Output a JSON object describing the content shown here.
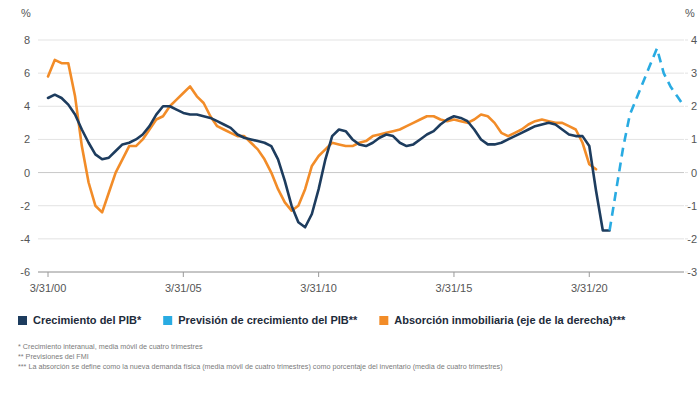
{
  "chart_data": {
    "type": "line",
    "y_label": "%",
    "y2_label": "%",
    "categories": [
      "3/31/00",
      null,
      null,
      null,
      null,
      null,
      null,
      null,
      null,
      null,
      null,
      null,
      null,
      null,
      null,
      null,
      null,
      null,
      null,
      null,
      "3/31/05",
      null,
      null,
      null,
      null,
      null,
      null,
      null,
      null,
      null,
      null,
      null,
      null,
      null,
      null,
      null,
      null,
      null,
      null,
      null,
      "3/31/10",
      null,
      null,
      null,
      null,
      null,
      null,
      null,
      null,
      null,
      null,
      null,
      null,
      null,
      null,
      null,
      null,
      null,
      null,
      null,
      "3/31/15",
      null,
      null,
      null,
      null,
      null,
      null,
      null,
      null,
      null,
      null,
      null,
      null,
      null,
      null,
      null,
      null,
      null,
      null,
      null,
      "3/31/20",
      null,
      null,
      null,
      null,
      null,
      null,
      null,
      null,
      null,
      null,
      null,
      null,
      null,
      null
    ],
    "ylim": [
      -6,
      8
    ],
    "yticks": [
      -6,
      -4,
      -2,
      0,
      2,
      4,
      6,
      8
    ],
    "y2lim": [
      -3,
      4
    ],
    "y2ticks": [
      -3,
      -2,
      -1,
      0,
      1,
      2,
      3,
      4
    ],
    "grid": true,
    "legend": "bottom",
    "series": [
      {
        "name": "Crecimiento del PIB*",
        "color": "#1d3c5e",
        "line_style": "solid",
        "values": [
          4.5,
          4.7,
          4.5,
          4.1,
          3.5,
          2.6,
          1.8,
          1.1,
          0.8,
          0.9,
          1.3,
          1.7,
          1.8,
          2.0,
          2.3,
          2.8,
          3.5,
          4.0,
          4.0,
          3.8,
          3.6,
          3.5,
          3.5,
          3.4,
          3.3,
          3.1,
          2.9,
          2.7,
          2.3,
          2.1,
          2.0,
          1.9,
          1.8,
          1.6,
          0.8,
          -0.5,
          -2.0,
          -3.0,
          -3.3,
          -2.5,
          -1.0,
          0.8,
          2.2,
          2.6,
          2.5,
          2.0,
          1.7,
          1.6,
          1.8,
          2.1,
          2.3,
          2.2,
          1.8,
          1.6,
          1.7,
          2.0,
          2.3,
          2.5,
          2.9,
          3.2,
          3.4,
          3.3,
          3.1,
          2.6,
          2.0,
          1.7,
          1.7,
          1.8,
          2.0,
          2.2,
          2.4,
          2.6,
          2.8,
          2.9,
          3.0,
          2.9,
          2.6,
          2.3,
          2.2,
          2.2,
          1.6,
          -1.1,
          -3.5,
          -3.5,
          null,
          null,
          null,
          null,
          null,
          null,
          null,
          null,
          null,
          null,
          null
        ]
      },
      {
        "name": "Previsión de crecimiento del PIB**",
        "color": "#29abe2",
        "line_style": "dashed",
        "values": [
          null,
          null,
          null,
          null,
          null,
          null,
          null,
          null,
          null,
          null,
          null,
          null,
          null,
          null,
          null,
          null,
          null,
          null,
          null,
          null,
          null,
          null,
          null,
          null,
          null,
          null,
          null,
          null,
          null,
          null,
          null,
          null,
          null,
          null,
          null,
          null,
          null,
          null,
          null,
          null,
          null,
          null,
          null,
          null,
          null,
          null,
          null,
          null,
          null,
          null,
          null,
          null,
          null,
          null,
          null,
          null,
          null,
          null,
          null,
          null,
          null,
          null,
          null,
          null,
          null,
          null,
          null,
          null,
          null,
          null,
          null,
          null,
          null,
          null,
          null,
          null,
          null,
          null,
          null,
          null,
          null,
          null,
          null,
          -3.5,
          -1.0,
          1.5,
          3.5,
          4.5,
          5.5,
          6.5,
          7.5,
          6.0,
          5.2,
          4.6,
          4.0
        ]
      },
      {
        "name": "Absorción inmobiliaria (eje de la derecha)***",
        "color": "#f28c28",
        "line_style": "solid",
        "axis": "y2",
        "values": [
          2.9,
          3.4,
          3.3,
          3.3,
          2.3,
          0.8,
          -0.3,
          -1.0,
          -1.2,
          -0.6,
          0.0,
          0.4,
          0.8,
          0.8,
          1.0,
          1.3,
          1.6,
          1.7,
          2.0,
          2.2,
          2.4,
          2.6,
          2.3,
          2.1,
          1.7,
          1.4,
          1.3,
          1.2,
          1.1,
          1.1,
          0.9,
          0.7,
          0.4,
          0.0,
          -0.5,
          -0.9,
          -1.15,
          -1.0,
          -0.5,
          0.2,
          0.5,
          0.7,
          0.9,
          0.85,
          0.8,
          0.8,
          0.9,
          0.95,
          1.1,
          1.15,
          1.2,
          1.25,
          1.3,
          1.4,
          1.5,
          1.6,
          1.7,
          1.7,
          1.6,
          1.55,
          1.6,
          1.55,
          1.5,
          1.6,
          1.75,
          1.7,
          1.5,
          1.2,
          1.1,
          1.2,
          1.3,
          1.45,
          1.55,
          1.6,
          1.55,
          1.5,
          1.5,
          1.4,
          1.3,
          0.9,
          0.25,
          0.1,
          null,
          null,
          null,
          null,
          null,
          null,
          null,
          null,
          null,
          null,
          null,
          null,
          null
        ]
      }
    ],
    "notes": [
      "* Crecimiento interanual, media móvil de cuatro trimestres",
      "** Previsiones del FMI",
      "*** La absorción se define como la nueva demanda física (media móvil de cuatro trimestres) como porcentaje del inventario (media de cuatro trimestres)"
    ]
  }
}
